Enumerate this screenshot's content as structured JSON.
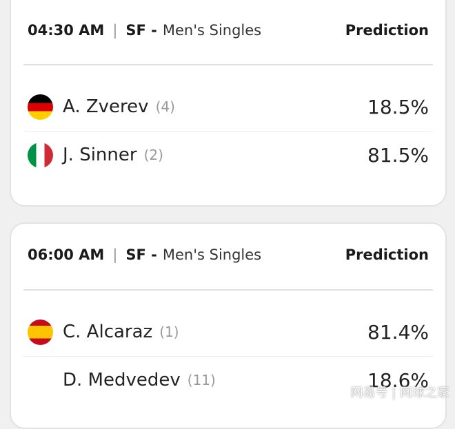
{
  "matches": [
    {
      "time": "04:30 AM",
      "round": "SF -",
      "event": "Men's Singles",
      "prediction_label": "Prediction",
      "players": [
        {
          "name": "A. Zverev",
          "seed": "(4)",
          "prediction": "18.5%",
          "flag": "germany-flag"
        },
        {
          "name": "J. Sinner",
          "seed": "(2)",
          "prediction": "81.5%",
          "flag": "italy-flag"
        }
      ]
    },
    {
      "time": "06:00 AM",
      "round": "SF -",
      "event": "Men's Singles",
      "prediction_label": "Prediction",
      "players": [
        {
          "name": "C. Alcaraz",
          "seed": "(1)",
          "prediction": "81.4%",
          "flag": "spain-flag"
        },
        {
          "name": "D. Medvedev",
          "seed": "(11)",
          "prediction": "18.6%",
          "flag": ""
        }
      ]
    }
  ],
  "watermark": "网易号 | 网球之家"
}
